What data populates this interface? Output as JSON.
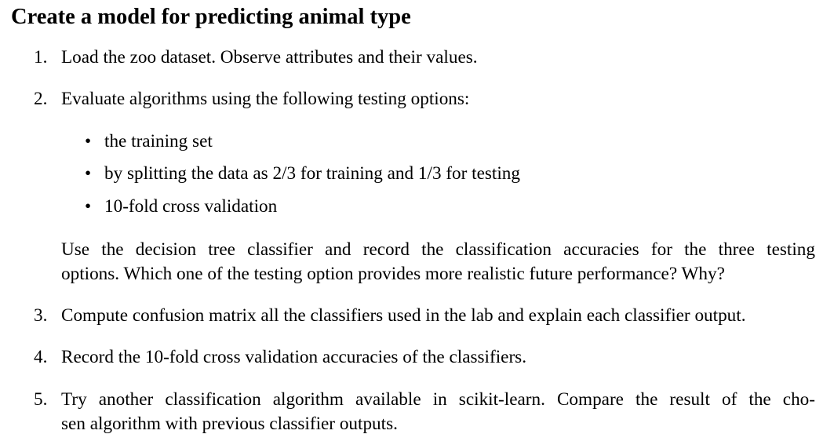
{
  "title": "Create a model for predicting animal type",
  "items": [
    {
      "number": "1.",
      "lines": [
        "Load the zoo dataset. Observe attributes and their values."
      ]
    },
    {
      "number": "2.",
      "lines": [
        "Evaluate algorithms using the following testing options:"
      ],
      "bullets": [
        "the training set",
        "by splitting the data as 2/3 for training and 1/3 for testing",
        "10-fold cross validation"
      ],
      "bullet_symbol": "•",
      "followup": [
        "Use the decision tree classifier and record the classification accuracies for the three testing",
        "options. Which one of the testing option provides more realistic future performance? Why?"
      ]
    },
    {
      "number": "3.",
      "lines": [
        "Compute confusion matrix all the classifiers used in the lab and explain each classifier output."
      ]
    },
    {
      "number": "4.",
      "lines": [
        "Record the 10-fold cross validation accuracies of the classifiers."
      ]
    },
    {
      "number": "5.",
      "lines": [
        "Try another classification algorithm available in scikit-learn. Compare the result of the cho-",
        "sen algorithm with previous classifier outputs."
      ]
    }
  ]
}
